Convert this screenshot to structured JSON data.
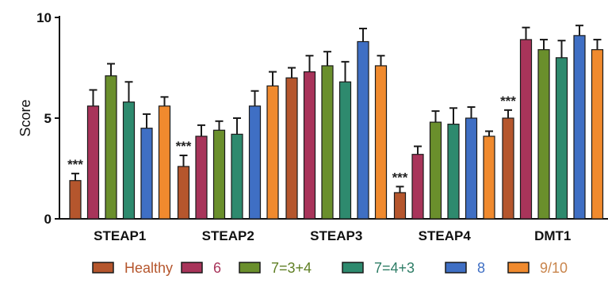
{
  "chart_data": {
    "type": "bar",
    "ylabel": "Score",
    "ylim": [
      0,
      10
    ],
    "yticks": [
      0,
      5,
      10
    ],
    "categories": [
      "STEAP1",
      "STEAP2",
      "STEAP3",
      "STEAP4",
      "DMT1"
    ],
    "series": [
      {
        "name": "Healthy",
        "color": "#b5562d",
        "legend_text_color": "#b5562d",
        "values": [
          1.9,
          2.6,
          7.0,
          1.3,
          5.0
        ],
        "errors": [
          0.35,
          0.55,
          0.5,
          0.3,
          0.4
        ]
      },
      {
        "name": "6",
        "color": "#a8345a",
        "legend_text_color": "#a8345a",
        "values": [
          5.6,
          4.1,
          7.3,
          3.2,
          8.9
        ],
        "errors": [
          0.8,
          0.55,
          0.8,
          0.4,
          0.6
        ]
      },
      {
        "name": "7=3+4",
        "color": "#6a8f2c",
        "legend_text_color": "#5f7f24",
        "values": [
          7.1,
          4.4,
          7.6,
          4.8,
          8.4
        ],
        "errors": [
          0.6,
          0.45,
          0.7,
          0.55,
          0.5
        ]
      },
      {
        "name": "7=4+3",
        "color": "#2e8a6e",
        "legend_text_color": "#2e7d66",
        "values": [
          5.8,
          4.2,
          6.8,
          4.7,
          8.0
        ],
        "errors": [
          1.0,
          0.8,
          1.0,
          0.8,
          0.85
        ]
      },
      {
        "name": "8",
        "color": "#3f6fc4",
        "legend_text_color": "#3f6fc4",
        "values": [
          4.5,
          5.6,
          8.8,
          5.0,
          9.1
        ],
        "errors": [
          0.7,
          0.75,
          0.65,
          0.55,
          0.5
        ]
      },
      {
        "name": "9/10",
        "color": "#f08a2e",
        "legend_text_color": "#c9854c",
        "values": [
          5.6,
          6.6,
          7.6,
          4.1,
          8.4
        ],
        "errors": [
          0.45,
          0.7,
          0.5,
          0.25,
          0.5
        ]
      }
    ],
    "annotations": [
      {
        "category": "STEAP1",
        "series": "Healthy",
        "text": "***"
      },
      {
        "category": "STEAP2",
        "series": "Healthy",
        "text": "***"
      },
      {
        "category": "STEAP4",
        "series": "Healthy",
        "text": "***"
      },
      {
        "category": "DMT1",
        "series": "Healthy",
        "text": "***"
      }
    ],
    "legend_position": "bottom"
  }
}
